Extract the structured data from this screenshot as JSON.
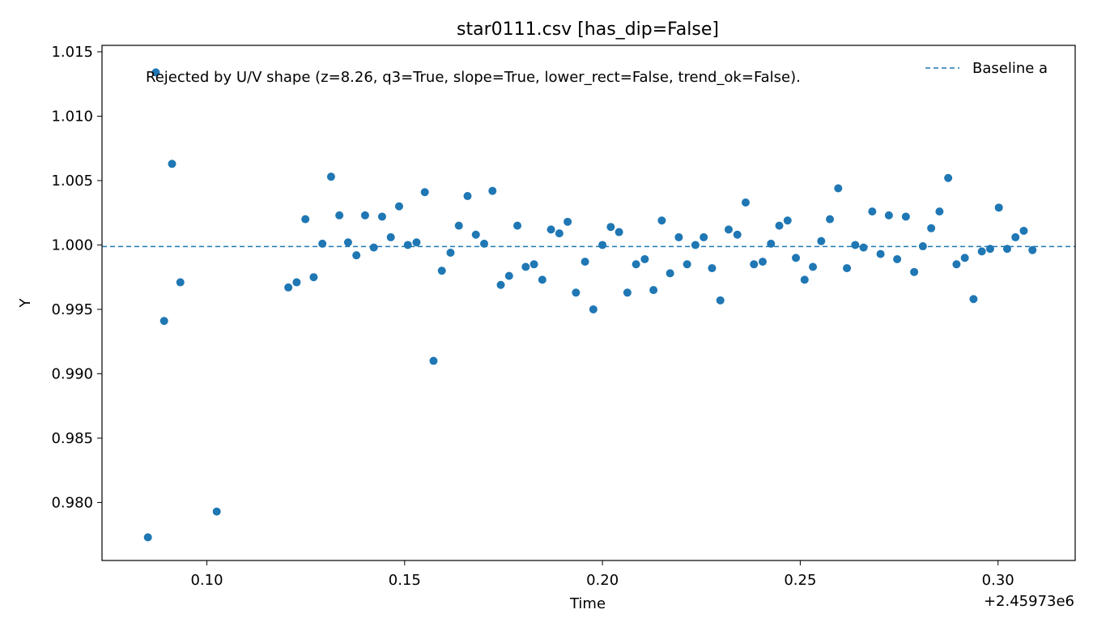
{
  "chart_data": {
    "type": "scatter",
    "title": "star0111.csv [has_dip=False]",
    "xlabel": "Time",
    "ylabel": "Y",
    "x_offset_label": "+2.45973e6",
    "annotation": "Rejected by U/V shape (z=8.26, q3=True, slope=True, lower_rect=False, trend_ok=False).",
    "xlim": [
      0.0735,
      0.3195
    ],
    "ylim": [
      0.9755,
      1.0155
    ],
    "x_ticks": [
      {
        "value": 0.1,
        "label": "0.10"
      },
      {
        "value": 0.15,
        "label": "0.15"
      },
      {
        "value": 0.2,
        "label": "0.20"
      },
      {
        "value": 0.25,
        "label": "0.25"
      },
      {
        "value": 0.3,
        "label": "0.30"
      }
    ],
    "y_ticks": [
      {
        "value": 0.98,
        "label": "0.980"
      },
      {
        "value": 0.985,
        "label": "0.985"
      },
      {
        "value": 0.99,
        "label": "0.990"
      },
      {
        "value": 0.995,
        "label": "0.995"
      },
      {
        "value": 1.0,
        "label": "1.000"
      },
      {
        "value": 1.005,
        "label": "1.005"
      },
      {
        "value": 1.01,
        "label": "1.010"
      },
      {
        "value": 1.015,
        "label": "1.015"
      }
    ],
    "grid": false,
    "legend_placement": "top-right",
    "baseline": {
      "name": "Baseline a",
      "value": 0.99988,
      "style": "dashed",
      "color": "#1f77b4"
    },
    "series": [
      {
        "color": "#1f77b4",
        "points": [
          [
            0.0851,
            0.9773
          ],
          [
            0.0871,
            1.0134
          ],
          [
            0.0892,
            0.9941
          ],
          [
            0.0912,
            1.0063
          ],
          [
            0.0933,
            0.9971
          ],
          [
            0.1025,
            0.9793
          ],
          [
            0.1206,
            0.9967
          ],
          [
            0.1227,
            0.9971
          ],
          [
            0.1249,
            1.002
          ],
          [
            0.127,
            0.9975
          ],
          [
            0.1292,
            1.0001
          ],
          [
            0.1314,
            1.0053
          ],
          [
            0.1335,
            1.0023
          ],
          [
            0.1357,
            1.0002
          ],
          [
            0.1378,
            0.9992
          ],
          [
            0.14,
            1.0023
          ],
          [
            0.1422,
            0.9998
          ],
          [
            0.1443,
            1.0022
          ],
          [
            0.1465,
            1.0006
          ],
          [
            0.1486,
            1.003
          ],
          [
            0.1508,
            1.0
          ],
          [
            0.153,
            1.0002
          ],
          [
            0.1551,
            1.0041
          ],
          [
            0.1573,
            0.991
          ],
          [
            0.1594,
            0.998
          ],
          [
            0.1616,
            0.9994
          ],
          [
            0.1637,
            1.0015
          ],
          [
            0.1659,
            1.0038
          ],
          [
            0.168,
            1.0008
          ],
          [
            0.1701,
            1.0001
          ],
          [
            0.1722,
            1.0042
          ],
          [
            0.1743,
            0.9969
          ],
          [
            0.1764,
            0.9976
          ],
          [
            0.1785,
            1.0015
          ],
          [
            0.1806,
            0.9983
          ],
          [
            0.1827,
            0.9985
          ],
          [
            0.1848,
            0.9973
          ],
          [
            0.187,
            1.0012
          ],
          [
            0.1891,
            1.0009
          ],
          [
            0.1912,
            1.0018
          ],
          [
            0.1933,
            0.9963
          ],
          [
            0.1956,
            0.9987
          ],
          [
            0.1977,
            0.995
          ],
          [
            0.2,
            1.0
          ],
          [
            0.2021,
            1.0014
          ],
          [
            0.2042,
            1.001
          ],
          [
            0.2063,
            0.9963
          ],
          [
            0.2085,
            0.9985
          ],
          [
            0.2107,
            0.9989
          ],
          [
            0.2129,
            0.9965
          ],
          [
            0.215,
            1.0019
          ],
          [
            0.2171,
            0.9978
          ],
          [
            0.2193,
            1.0006
          ],
          [
            0.2214,
            0.9985
          ],
          [
            0.2235,
            1.0
          ],
          [
            0.2256,
            1.0006
          ],
          [
            0.2277,
            0.9982
          ],
          [
            0.2298,
            0.9957
          ],
          [
            0.2319,
            1.0012
          ],
          [
            0.2341,
            1.0008
          ],
          [
            0.2362,
            1.0033
          ],
          [
            0.2383,
            0.9985
          ],
          [
            0.2405,
            0.9987
          ],
          [
            0.2426,
            1.0001
          ],
          [
            0.2447,
            1.0015
          ],
          [
            0.2468,
            1.0019
          ],
          [
            0.2489,
            0.999
          ],
          [
            0.2511,
            0.9973
          ],
          [
            0.2532,
            0.9983
          ],
          [
            0.2553,
            1.0003
          ],
          [
            0.2575,
            1.002
          ],
          [
            0.2596,
            1.0044
          ],
          [
            0.2618,
            0.9982
          ],
          [
            0.2639,
            1.0
          ],
          [
            0.266,
            0.9998
          ],
          [
            0.2682,
            1.0026
          ],
          [
            0.2703,
            0.9993
          ],
          [
            0.2724,
            1.0023
          ],
          [
            0.2745,
            0.9989
          ],
          [
            0.2767,
            1.0022
          ],
          [
            0.2788,
            0.9979
          ],
          [
            0.281,
            0.9999
          ],
          [
            0.2831,
            1.0013
          ],
          [
            0.2852,
            1.0026
          ],
          [
            0.2874,
            1.0052
          ],
          [
            0.2895,
            0.9985
          ],
          [
            0.2916,
            0.999
          ],
          [
            0.2938,
            0.9958
          ],
          [
            0.2959,
            0.9995
          ],
          [
            0.298,
            0.9997
          ],
          [
            0.3002,
            1.0029
          ],
          [
            0.3023,
            0.9997
          ],
          [
            0.3044,
            1.0006
          ],
          [
            0.3065,
            1.0011
          ],
          [
            0.3087,
            0.9996
          ]
        ]
      }
    ]
  }
}
